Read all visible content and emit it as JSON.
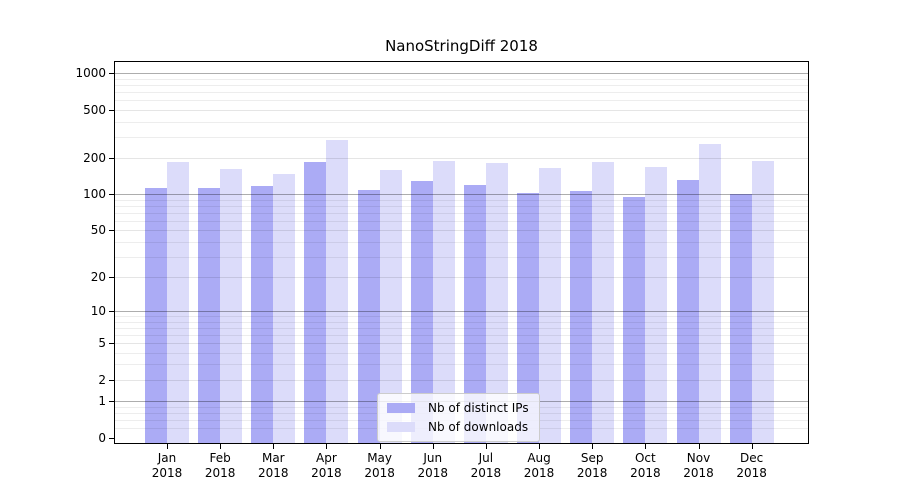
{
  "title": "NanoStringDiff 2018",
  "chart_data": {
    "type": "bar",
    "title": "NanoStringDiff 2018",
    "scale": "log1p",
    "categories": [
      "Jan 2018",
      "Feb 2018",
      "Mar 2018",
      "Apr 2018",
      "May 2018",
      "Jun 2018",
      "Jul 2018",
      "Aug 2018",
      "Sep 2018",
      "Oct 2018",
      "Nov 2018",
      "Dec 2018"
    ],
    "series": [
      {
        "name": "Nb of distinct IPs",
        "color": "#ababf5",
        "values": [
          112,
          113,
          118,
          186,
          109,
          130,
          120,
          103,
          106,
          95,
          132,
          100
        ]
      },
      {
        "name": "Nb of downloads",
        "color": "#dcdcfa",
        "values": [
          186,
          163,
          148,
          283,
          158,
          190,
          183,
          165,
          186,
          167,
          259,
          190
        ]
      }
    ],
    "y_ticks": [
      0,
      1,
      2,
      5,
      10,
      20,
      50,
      100,
      200,
      500,
      1000
    ],
    "y_minor_gridlines": [
      0.2,
      0.4,
      0.6,
      0.8,
      3,
      4,
      6,
      7,
      8,
      9,
      30,
      40,
      60,
      70,
      80,
      90,
      300,
      400,
      600,
      700,
      800,
      900
    ],
    "ylim": [
      0,
      1260
    ],
    "xlabel": "",
    "ylabel": "",
    "grid": true,
    "legend_position": "lower center",
    "spine_color": "#000000"
  }
}
